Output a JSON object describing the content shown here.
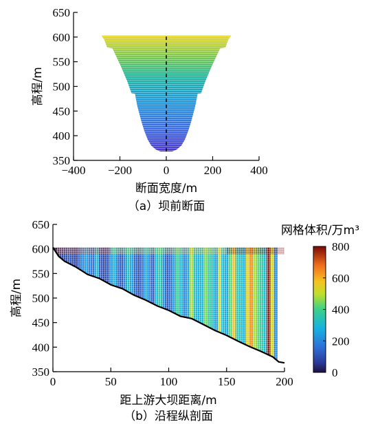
{
  "chart_data": [
    {
      "type": "area",
      "caption": "（a）坝前断面",
      "xlabel": "断面宽度/m",
      "ylabel": "高程/m",
      "xlim": [
        -400,
        400
      ],
      "ylim": [
        350,
        650
      ],
      "xticks": [
        "−400",
        "−200",
        "0",
        "200",
        "400"
      ],
      "yticks": [
        "350",
        "400",
        "450",
        "500",
        "550",
        "600",
        "650"
      ],
      "profile": [
        {
          "elev": 368,
          "half_width": 25
        },
        {
          "elev": 372,
          "half_width": 45
        },
        {
          "elev": 380,
          "half_width": 65
        },
        {
          "elev": 392,
          "half_width": 80
        },
        {
          "elev": 410,
          "half_width": 95
        },
        {
          "elev": 430,
          "half_width": 108
        },
        {
          "elev": 460,
          "half_width": 125
        },
        {
          "elev": 485,
          "half_width": 135
        },
        {
          "elev": 486,
          "half_width": 150
        },
        {
          "elev": 510,
          "half_width": 168
        },
        {
          "elev": 540,
          "half_width": 195
        },
        {
          "elev": 560,
          "half_width": 215
        },
        {
          "elev": 577,
          "half_width": 232
        },
        {
          "elev": 579,
          "half_width": 255
        },
        {
          "elev": 595,
          "half_width": 268
        },
        {
          "elev": 603,
          "half_width": 280
        }
      ],
      "centerline_x": 0
    },
    {
      "type": "heatmap",
      "caption": "（b）沿程纵剖面",
      "xlabel": "距上游大坝距离/m",
      "ylabel": "高程/m",
      "xlim": [
        0,
        200
      ],
      "ylim": [
        350,
        650
      ],
      "xticks": [
        "0",
        "50",
        "100",
        "150",
        "200"
      ],
      "yticks": [
        "350",
        "400",
        "450",
        "500",
        "550",
        "600",
        "650"
      ],
      "surface_elevation": 603,
      "bed_profile": [
        {
          "x": 0,
          "elev": 603
        },
        {
          "x": 5,
          "elev": 585
        },
        {
          "x": 10,
          "elev": 575
        },
        {
          "x": 20,
          "elev": 563
        },
        {
          "x": 30,
          "elev": 548
        },
        {
          "x": 40,
          "elev": 540
        },
        {
          "x": 50,
          "elev": 527
        },
        {
          "x": 60,
          "elev": 519
        },
        {
          "x": 70,
          "elev": 506
        },
        {
          "x": 80,
          "elev": 496
        },
        {
          "x": 90,
          "elev": 484
        },
        {
          "x": 100,
          "elev": 475
        },
        {
          "x": 110,
          "elev": 463
        },
        {
          "x": 120,
          "elev": 458
        },
        {
          "x": 130,
          "elev": 446
        },
        {
          "x": 140,
          "elev": 434
        },
        {
          "x": 150,
          "elev": 424
        },
        {
          "x": 160,
          "elev": 412
        },
        {
          "x": 170,
          "elev": 401
        },
        {
          "x": 180,
          "elev": 391
        },
        {
          "x": 190,
          "elev": 380
        },
        {
          "x": 195,
          "elev": 370
        },
        {
          "x": 200,
          "elev": 368
        }
      ],
      "column_values": [
        60,
        60,
        80,
        90,
        120,
        90,
        70,
        140,
        200,
        240,
        180,
        160,
        300,
        120,
        80,
        100,
        220,
        280,
        160,
        120,
        200,
        320,
        240,
        140,
        100,
        160,
        260,
        200,
        120,
        300,
        360,
        220,
        120,
        150,
        240,
        380,
        300,
        200,
        260,
        480,
        320,
        280,
        300,
        440,
        380,
        320,
        240,
        520,
        300,
        260,
        420,
        580,
        360,
        320,
        280,
        540,
        640,
        480,
        420,
        360,
        300,
        780,
        520,
        200,
        0,
        0
      ],
      "surface_values": [
        700,
        520,
        600,
        820
      ],
      "colorbar": {
        "title": "网格体积/万m³",
        "ticks": [
          "0",
          "200",
          "400",
          "600",
          "800"
        ],
        "range": [
          0,
          800
        ]
      }
    }
  ]
}
